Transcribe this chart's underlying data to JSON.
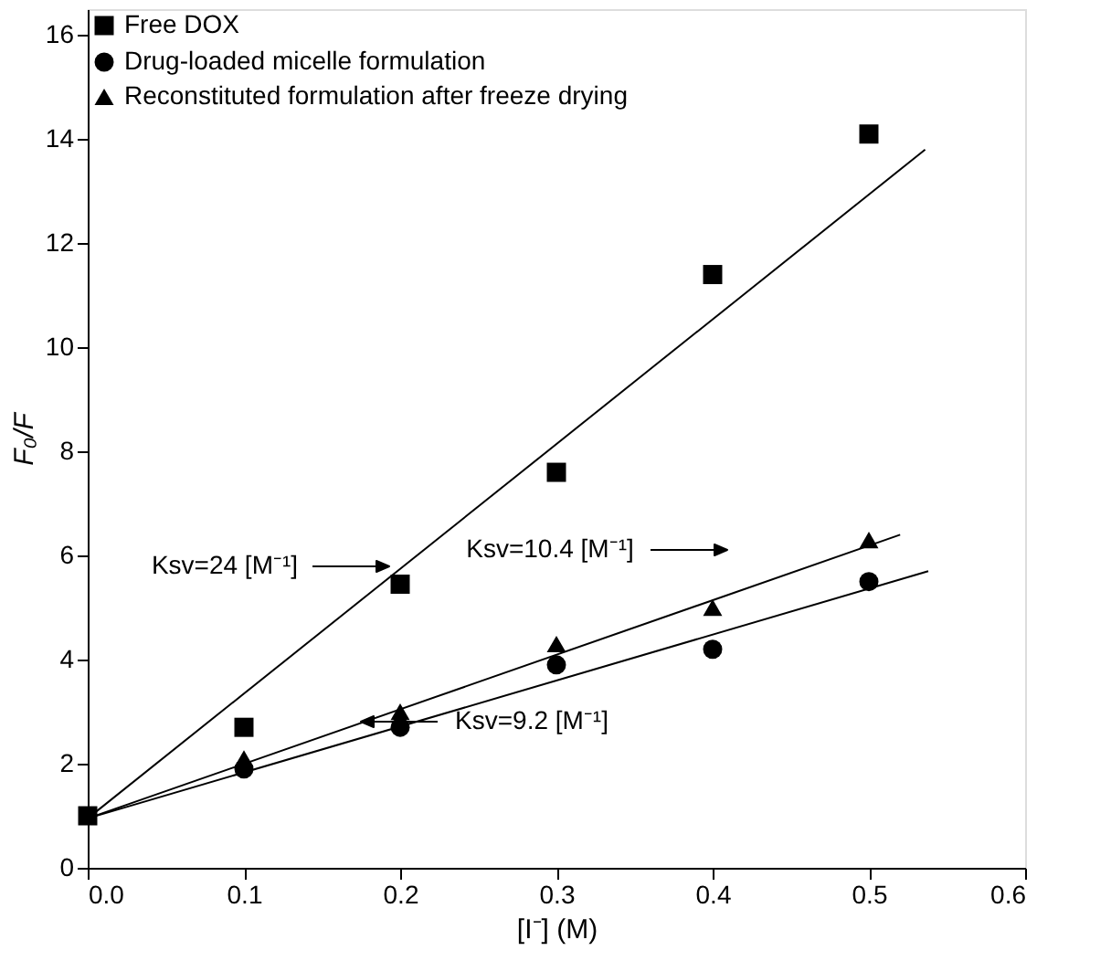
{
  "chart_data": {
    "type": "scatter",
    "xlabel": "[I⁻] (M)",
    "ylabel": "F₀/F",
    "xlim": [
      0,
      0.6
    ],
    "xticks": [
      {
        "value": 0,
        "label": "0.0"
      },
      0.1,
      0.2,
      0.3,
      0.4,
      0.5,
      0.6
    ],
    "ylim": [
      0,
      16.5
    ],
    "yticks": [
      0,
      2,
      4,
      6,
      8,
      10,
      12,
      14,
      16
    ],
    "x": [
      0,
      0.1,
      0.2,
      0.3,
      0.4,
      0.5
    ],
    "series": [
      {
        "name": "Free DOX",
        "color": "#000000",
        "marker": "square",
        "values": [
          1.0,
          2.7,
          5.45,
          7.6,
          11.4,
          14.1
        ]
      },
      {
        "name": "Drug-loaded micelle formulation",
        "color": "#000000",
        "marker": "circle",
        "values": [
          null,
          1.9,
          2.7,
          3.9,
          4.2,
          5.5
        ]
      },
      {
        "name": "Reconstituted formulation after freeze drying",
        "color": "#000000",
        "marker": "triangle",
        "values": [
          null,
          2.1,
          3.0,
          4.3,
          5.0,
          6.3
        ]
      },
      {
        "type": "line",
        "color": "#000000",
        "marker": "none",
        "x": [
          0,
          0.536
        ],
        "values": [
          0.95,
          13.8
        ]
      },
      {
        "type": "line",
        "color": "#000000",
        "marker": "none",
        "x": [
          0,
          0.52
        ],
        "values": [
          0.95,
          6.4
        ]
      },
      {
        "type": "line",
        "color": "#000000",
        "marker": "none",
        "x": [
          0,
          0.538
        ],
        "values": [
          0.95,
          5.7
        ]
      }
    ],
    "annotations": [
      "Ksv=24 [M⁻¹]",
      "Ksv=10.4 [M⁻¹]",
      "Ksv=9.2 [M⁻¹]"
    ],
    "legend": "top left",
    "grid": false
  }
}
